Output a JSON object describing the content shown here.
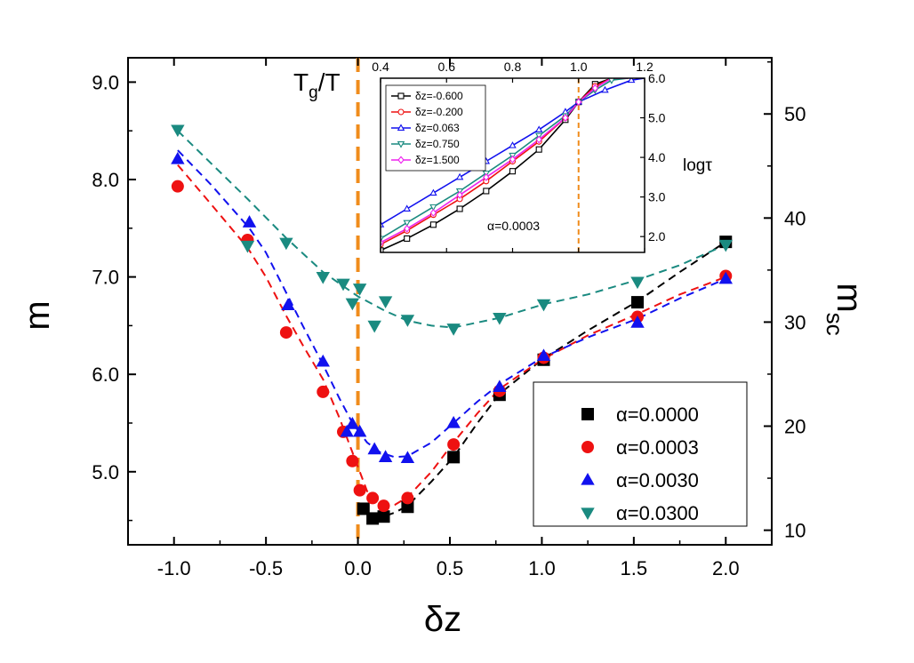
{
  "chart_data": {
    "main": {
      "type": "scatter",
      "xlabel": "δz",
      "ylabel": "m",
      "y2label": "m",
      "y2label_sub": "sc",
      "xlim": [
        -1.25,
        2.25
      ],
      "ylim": [
        4.25,
        9.25
      ],
      "y2lim": [
        8.6,
        55.4
      ],
      "xticks": [
        -1.0,
        -0.5,
        0.0,
        0.5,
        1.0,
        1.5,
        2.0
      ],
      "xtick_labels": [
        "-1.0",
        "-0.5",
        "0.0",
        "0.5",
        "1.0",
        "1.5",
        "2.0"
      ],
      "yticks": [
        5.0,
        6.0,
        7.0,
        8.0,
        9.0
      ],
      "ytick_labels": [
        "5.0",
        "6.0",
        "7.0",
        "8.0",
        "9.0"
      ],
      "y2ticks": [
        10,
        20,
        30,
        40,
        50
      ],
      "y2tick_labels": [
        "10",
        "20",
        "30",
        "40",
        "50"
      ],
      "vline": {
        "x": 0.0,
        "label": "T",
        "label_sub": "g",
        "label_tail": "/T",
        "color": "#f08c1c"
      },
      "legend_position": "bottom-right",
      "series": [
        {
          "name": "α=0.0000",
          "marker": "square",
          "color": "#000000",
          "x": [
            0.03,
            0.08,
            0.14,
            0.27,
            0.52,
            0.77,
            1.01,
            1.52,
            2.0
          ],
          "y": [
            4.62,
            4.52,
            4.54,
            4.64,
            5.15,
            5.79,
            6.15,
            6.74,
            7.36
          ],
          "fit": [
            [
              0.02,
              4.62
            ],
            [
              0.08,
              4.55
            ],
            [
              0.14,
              4.54
            ],
            [
              0.2,
              4.58
            ],
            [
              0.27,
              4.65
            ],
            [
              0.4,
              4.9
            ],
            [
              0.52,
              5.15
            ],
            [
              0.65,
              5.5
            ],
            [
              0.77,
              5.8
            ],
            [
              1.0,
              6.15
            ],
            [
              1.25,
              6.45
            ],
            [
              1.52,
              6.75
            ],
            [
              1.75,
              7.05
            ],
            [
              2.0,
              7.36
            ]
          ]
        },
        {
          "name": "α=0.0003",
          "marker": "circle",
          "color": "#ee1111",
          "x": [
            -0.98,
            -0.6,
            -0.39,
            -0.19,
            -0.08,
            -0.03,
            0.01,
            0.08,
            0.14,
            0.27,
            0.52,
            0.77,
            1.01,
            1.52,
            2.0
          ],
          "y": [
            7.93,
            7.38,
            6.43,
            5.82,
            5.41,
            5.11,
            4.81,
            4.73,
            4.65,
            4.73,
            5.28,
            5.83,
            6.17,
            6.59,
            7.01
          ],
          "fit": [
            [
              -0.98,
              8.15
            ],
            [
              -0.8,
              7.75
            ],
            [
              -0.6,
              7.3
            ],
            [
              -0.5,
              7.0
            ],
            [
              -0.39,
              6.6
            ],
            [
              -0.3,
              6.3
            ],
            [
              -0.19,
              5.95
            ],
            [
              -0.1,
              5.55
            ],
            [
              -0.05,
              5.3
            ],
            [
              0.0,
              5.05
            ],
            [
              0.05,
              4.8
            ],
            [
              0.1,
              4.7
            ],
            [
              0.15,
              4.65
            ],
            [
              0.2,
              4.66
            ],
            [
              0.27,
              4.74
            ],
            [
              0.4,
              5.0
            ],
            [
              0.52,
              5.3
            ],
            [
              0.65,
              5.6
            ],
            [
              0.77,
              5.85
            ],
            [
              1.0,
              6.15
            ],
            [
              1.25,
              6.4
            ],
            [
              1.52,
              6.62
            ],
            [
              1.75,
              6.82
            ],
            [
              2.0,
              7.0
            ]
          ]
        },
        {
          "name": "α=0.0030",
          "marker": "triangle-up",
          "color": "#1111ee",
          "x": [
            -0.98,
            -0.59,
            -0.38,
            -0.19,
            -0.06,
            -0.03,
            0.01,
            0.09,
            0.15,
            0.27,
            0.52,
            0.77,
            1.01,
            1.52,
            2.0
          ],
          "y": [
            8.21,
            7.56,
            6.71,
            6.13,
            5.41,
            5.49,
            5.41,
            5.23,
            5.15,
            5.14,
            5.5,
            5.87,
            6.19,
            6.53,
            6.98
          ],
          "fit": [
            [
              -0.98,
              8.3
            ],
            [
              -0.8,
              7.95
            ],
            [
              -0.59,
              7.5
            ],
            [
              -0.5,
              7.25
            ],
            [
              -0.38,
              6.8
            ],
            [
              -0.3,
              6.5
            ],
            [
              -0.19,
              6.1
            ],
            [
              -0.1,
              5.75
            ],
            [
              -0.03,
              5.5
            ],
            [
              0.05,
              5.3
            ],
            [
              0.12,
              5.2
            ],
            [
              0.2,
              5.15
            ],
            [
              0.27,
              5.16
            ],
            [
              0.4,
              5.3
            ],
            [
              0.52,
              5.5
            ],
            [
              0.65,
              5.72
            ],
            [
              0.77,
              5.9
            ],
            [
              1.0,
              6.17
            ],
            [
              1.25,
              6.38
            ],
            [
              1.52,
              6.57
            ],
            [
              1.75,
              6.78
            ],
            [
              2.0,
              6.98
            ]
          ]
        },
        {
          "name": "α=0.0300",
          "marker": "triangle-down",
          "color": "#1a8a80",
          "x": [
            -0.98,
            -0.6,
            -0.39,
            -0.19,
            -0.08,
            -0.03,
            0.01,
            0.09,
            0.15,
            0.27,
            0.52,
            0.77,
            1.01,
            1.52,
            2.0
          ],
          "y": [
            8.51,
            7.32,
            7.35,
            7.0,
            6.93,
            6.73,
            6.88,
            6.5,
            6.75,
            6.56,
            6.47,
            6.58,
            6.72,
            6.95,
            7.33
          ],
          "fit": [
            [
              -0.98,
              8.5
            ],
            [
              -0.6,
              7.8
            ],
            [
              -0.39,
              7.4
            ],
            [
              -0.19,
              7.05
            ],
            [
              0.0,
              6.8
            ],
            [
              0.15,
              6.65
            ],
            [
              0.27,
              6.55
            ],
            [
              0.4,
              6.5
            ],
            [
              0.52,
              6.48
            ],
            [
              0.77,
              6.58
            ],
            [
              1.01,
              6.72
            ],
            [
              1.25,
              6.82
            ],
            [
              1.52,
              6.97
            ],
            [
              1.75,
              7.12
            ],
            [
              2.0,
              7.33
            ]
          ]
        }
      ]
    },
    "inset": {
      "type": "line",
      "top_axis_label": "T",
      "top_axis_label_sub": "g",
      "top_axis_label_tail": "/T",
      "ylabel": "logτ",
      "annotation": "α=0.0003",
      "xlim": [
        0.4,
        1.2
      ],
      "ylim": [
        1.6,
        6.0
      ],
      "xticks": [
        0.4,
        0.6,
        0.8,
        1.0,
        1.2
      ],
      "xtick_labels": [
        "0.4",
        "0.6",
        "0.8",
        "1.0",
        "1.2"
      ],
      "yticks": [
        2.0,
        3.0,
        4.0,
        5.0,
        6.0
      ],
      "ytick_labels": [
        "2.0",
        "3.0",
        "4.0",
        "5.0",
        "6.0"
      ],
      "vline": {
        "x": 1.0,
        "color": "#f08c1c"
      },
      "series": [
        {
          "name": "δz=-0.600",
          "marker": "square-open",
          "color": "#000000",
          "x": [
            0.4,
            0.48,
            0.56,
            0.64,
            0.72,
            0.8,
            0.88,
            0.96,
            1.0,
            1.05,
            1.1,
            1.15
          ],
          "y": [
            1.65,
            1.95,
            2.3,
            2.7,
            3.15,
            3.65,
            4.2,
            4.95,
            5.4,
            5.85,
            6.0,
            6.0
          ]
        },
        {
          "name": "δz=-0.200",
          "marker": "circle-open",
          "color": "#ee1111",
          "x": [
            0.4,
            0.48,
            0.56,
            0.64,
            0.72,
            0.8,
            0.88,
            0.96,
            1.0,
            1.05,
            1.1,
            1.15
          ],
          "y": [
            1.8,
            2.15,
            2.55,
            2.95,
            3.4,
            3.9,
            4.4,
            5.0,
            5.4,
            5.8,
            6.0,
            6.0
          ]
        },
        {
          "name": "δz=0.063",
          "marker": "triangle-up-open",
          "color": "#1111ee",
          "x": [
            0.4,
            0.48,
            0.56,
            0.64,
            0.72,
            0.8,
            0.88,
            0.96,
            1.0,
            1.08,
            1.16,
            1.2
          ],
          "y": [
            2.3,
            2.7,
            3.1,
            3.5,
            3.9,
            4.3,
            4.7,
            5.15,
            5.4,
            5.7,
            5.95,
            6.0
          ]
        },
        {
          "name": "δz=0.750",
          "marker": "triangle-down-open",
          "color": "#1a8a80",
          "x": [
            0.4,
            0.48,
            0.56,
            0.64,
            0.72,
            0.8,
            0.88,
            0.96,
            1.0,
            1.05,
            1.1,
            1.15
          ],
          "y": [
            1.95,
            2.35,
            2.75,
            3.15,
            3.6,
            4.05,
            4.55,
            5.05,
            5.4,
            5.7,
            5.95,
            6.0
          ]
        },
        {
          "name": "δz=1.500",
          "marker": "diamond-open",
          "color": "#ee22ee",
          "x": [
            0.4,
            0.48,
            0.56,
            0.64,
            0.72,
            0.8,
            0.88,
            0.96,
            1.0,
            1.05,
            1.1,
            1.15
          ],
          "y": [
            1.85,
            2.2,
            2.6,
            3.05,
            3.5,
            3.95,
            4.45,
            5.0,
            5.4,
            5.75,
            6.0,
            6.0
          ]
        }
      ]
    }
  }
}
